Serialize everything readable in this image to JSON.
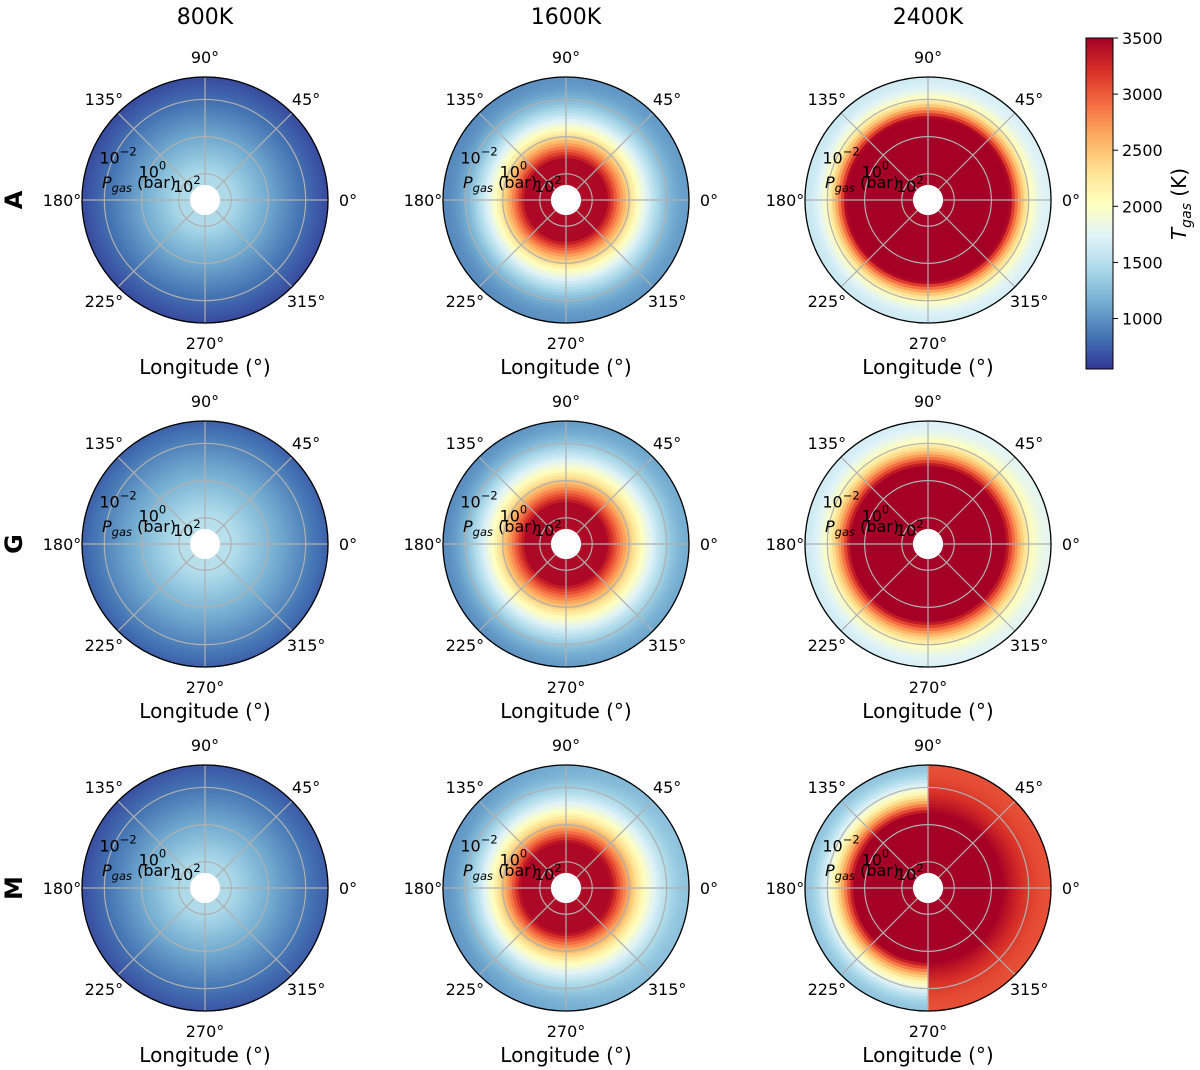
{
  "chart_data": {
    "type": "heatmap",
    "projection": "polar",
    "column_titles": [
      "800K",
      "1600K",
      "2400K"
    ],
    "row_labels": [
      "A",
      "G",
      "M"
    ],
    "angle_ticks": [
      0,
      45,
      90,
      135,
      180,
      225,
      270,
      315
    ],
    "angle_tick_labels": [
      "0°",
      "45°",
      "90°",
      "135°",
      "180°",
      "225°",
      "270°",
      "315°"
    ],
    "xlabel": "Longitude (°)",
    "radial_axis": {
      "label_main": "P",
      "label_sub": "gas",
      "label_tail": " (bar)",
      "tick_values": [
        0.01,
        1,
        100
      ],
      "tick_labels": [
        {
          "base": "10",
          "exp": "−2"
        },
        {
          "base": "10",
          "exp": "0"
        },
        {
          "base": "10",
          "exp": "2"
        }
      ],
      "scale": "log",
      "inverted": true
    },
    "grid": true,
    "colorbar": {
      "label_main": "T",
      "label_sub": "gas",
      "label_tail": " (K)",
      "colormap": "RdYlBu_r",
      "range": [
        550,
        3500
      ],
      "ticks": [
        1000,
        1500,
        2000,
        2500,
        3000,
        3500
      ],
      "tick_labels": [
        "1000",
        "1500",
        "2000",
        "2500",
        "3000",
        "3500"
      ],
      "position": "right"
    },
    "panels": [
      {
        "row": "A",
        "column": "800K",
        "T_outer": 650,
        "T_inner": 1450,
        "core_radius": 0.1,
        "falloff": 1.1,
        "asymmetry": 0.0,
        "split": null
      },
      {
        "row": "A",
        "column": "1600K",
        "T_outer": 1000,
        "T_inner": 3450,
        "core_radius": 0.24,
        "falloff": 1.9,
        "asymmetry": 0.03,
        "split": null
      },
      {
        "row": "A",
        "column": "2400K",
        "T_outer": 1650,
        "T_inner": 3500,
        "core_radius": 0.62,
        "falloff": 2.3,
        "asymmetry": 0.03,
        "split": null
      },
      {
        "row": "G",
        "column": "800K",
        "T_outer": 750,
        "T_inner": 1500,
        "core_radius": 0.1,
        "falloff": 1.0,
        "asymmetry": 0.0,
        "split": null
      },
      {
        "row": "G",
        "column": "1600K",
        "T_outer": 1050,
        "T_inner": 3450,
        "core_radius": 0.24,
        "falloff": 1.7,
        "asymmetry": 0.05,
        "split": null
      },
      {
        "row": "G",
        "column": "2400K",
        "T_outer": 1700,
        "T_inner": 3500,
        "core_radius": 0.58,
        "falloff": 2.1,
        "asymmetry": 0.04,
        "split": null
      },
      {
        "row": "M",
        "column": "800K",
        "T_outer": 700,
        "T_inner": 1450,
        "core_radius": 0.1,
        "falloff": 1.1,
        "asymmetry": 0.02,
        "split": null
      },
      {
        "row": "M",
        "column": "1600K",
        "T_outer": 1150,
        "T_inner": 3450,
        "core_radius": 0.28,
        "falloff": 1.9,
        "asymmetry": 0.08,
        "split": null
      },
      {
        "row": "M",
        "column": "2400K",
        "T_outer": 1550,
        "T_inner": 3500,
        "core_radius": 0.55,
        "falloff": 1.9,
        "asymmetry": 0.0,
        "split": {
          "T_east_outer": 3050,
          "T_west_outer": 1300
        }
      }
    ]
  }
}
